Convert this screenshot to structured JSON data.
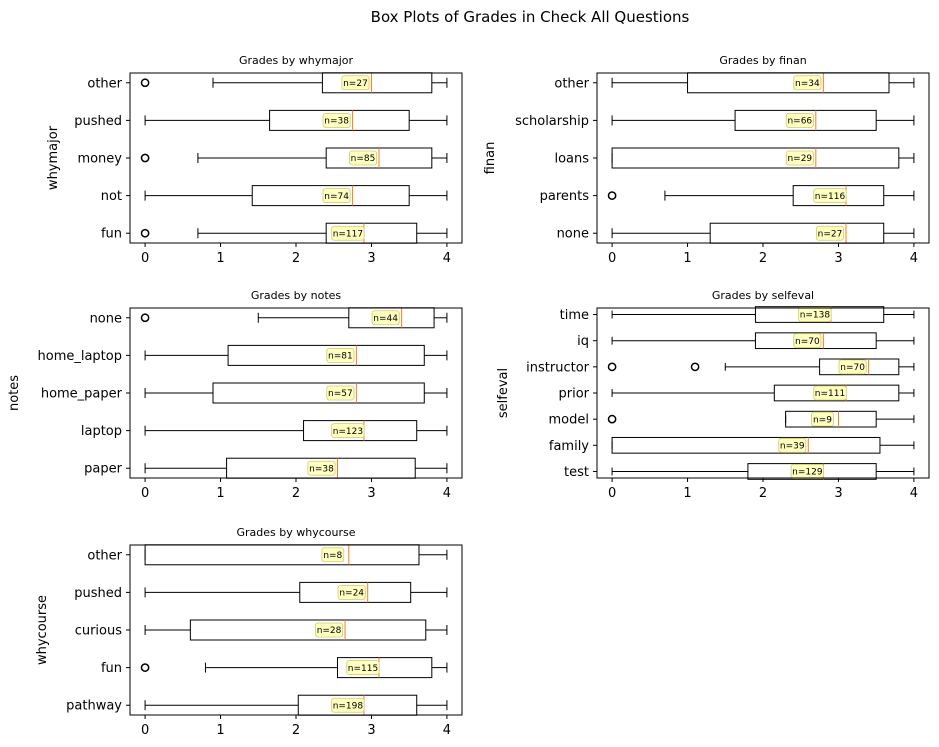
{
  "figure": {
    "suptitle": "Box Plots of Grades in Check All Questions"
  },
  "chart_data": [
    {
      "type": "boxplot",
      "orientation": "horizontal",
      "title": "Grades by whymajor",
      "xlabel": "",
      "ylabel": "whymajor",
      "xlim": [
        -0.2,
        4.2
      ],
      "xticks": [
        "0",
        "1",
        "2",
        "3",
        "4"
      ],
      "categories": [
        "other",
        "pushed",
        "money",
        "not",
        "fun"
      ],
      "boxes": [
        {
          "whislo": 0.9,
          "q1": 2.35,
          "med": 3.0,
          "q3": 3.8,
          "whishi": 4.0,
          "n": "n=27",
          "fliers": [
            0
          ]
        },
        {
          "whislo": 0.0,
          "q1": 1.65,
          "med": 2.75,
          "q3": 3.5,
          "whishi": 4.0,
          "n": "n=38",
          "fliers": []
        },
        {
          "whislo": 0.7,
          "q1": 2.4,
          "med": 3.1,
          "q3": 3.8,
          "whishi": 4.0,
          "n": "n=85",
          "fliers": [
            0
          ]
        },
        {
          "whislo": 0.0,
          "q1": 1.42,
          "med": 2.75,
          "q3": 3.5,
          "whishi": 4.0,
          "n": "n=74",
          "fliers": []
        },
        {
          "whislo": 0.7,
          "q1": 2.4,
          "med": 2.9,
          "q3": 3.6,
          "whishi": 4.0,
          "n": "n=117",
          "fliers": [
            0
          ]
        }
      ]
    },
    {
      "type": "boxplot",
      "orientation": "horizontal",
      "title": "Grades by finan",
      "xlabel": "",
      "ylabel": "finan",
      "xlim": [
        -0.2,
        4.2
      ],
      "xticks": [
        "0",
        "1",
        "2",
        "3",
        "4"
      ],
      "categories": [
        "other",
        "scholarship",
        "loans",
        "parents",
        "none"
      ],
      "boxes": [
        {
          "whislo": 0.0,
          "q1": 1.0,
          "med": 2.8,
          "q3": 3.67,
          "whishi": 4.0,
          "n": "n=34",
          "fliers": []
        },
        {
          "whislo": 0.0,
          "q1": 1.63,
          "med": 2.7,
          "q3": 3.5,
          "whishi": 4.0,
          "n": "n=66",
          "fliers": []
        },
        {
          "whislo": 0.0,
          "q1": 0.0,
          "med": 2.7,
          "q3": 3.8,
          "whishi": 4.0,
          "n": "n=29",
          "fliers": []
        },
        {
          "whislo": 0.7,
          "q1": 2.4,
          "med": 3.1,
          "q3": 3.6,
          "whishi": 4.0,
          "n": "n=116",
          "fliers": [
            0
          ]
        },
        {
          "whislo": 0.0,
          "q1": 1.3,
          "med": 3.1,
          "q3": 3.6,
          "whishi": 4.0,
          "n": "n=27",
          "fliers": []
        }
      ]
    },
    {
      "type": "boxplot",
      "orientation": "horizontal",
      "title": "Grades by notes",
      "xlabel": "",
      "ylabel": "notes",
      "xlim": [
        -0.2,
        4.2
      ],
      "xticks": [
        "0",
        "1",
        "2",
        "3",
        "4"
      ],
      "categories": [
        "none",
        "home_laptop",
        "home_paper",
        "laptop",
        "paper"
      ],
      "boxes": [
        {
          "whislo": 1.5,
          "q1": 2.7,
          "med": 3.4,
          "q3": 3.83,
          "whishi": 4.0,
          "n": "n=44",
          "fliers": [
            0
          ]
        },
        {
          "whislo": 0.0,
          "q1": 1.1,
          "med": 2.8,
          "q3": 3.7,
          "whishi": 4.0,
          "n": "n=81",
          "fliers": []
        },
        {
          "whislo": 0.0,
          "q1": 0.9,
          "med": 2.8,
          "q3": 3.7,
          "whishi": 4.0,
          "n": "n=57",
          "fliers": []
        },
        {
          "whislo": 0.0,
          "q1": 2.1,
          "med": 2.9,
          "q3": 3.6,
          "whishi": 4.0,
          "n": "n=123",
          "fliers": []
        },
        {
          "whislo": 0.0,
          "q1": 1.08,
          "med": 2.55,
          "q3": 3.58,
          "whishi": 4.0,
          "n": "n=38",
          "fliers": []
        }
      ]
    },
    {
      "type": "boxplot",
      "orientation": "horizontal",
      "title": "Grades by selfeval",
      "xlabel": "",
      "ylabel": "selfeval",
      "xlim": [
        -0.2,
        4.2
      ],
      "xticks": [
        "0",
        "1",
        "2",
        "3",
        "4"
      ],
      "categories": [
        "time",
        "iq",
        "instructor",
        "prior",
        "model",
        "family",
        "test"
      ],
      "boxes": [
        {
          "whislo": 0.0,
          "q1": 1.9,
          "med": 2.9,
          "q3": 3.6,
          "whishi": 4.0,
          "n": "n=138",
          "fliers": []
        },
        {
          "whislo": 0.0,
          "q1": 1.9,
          "med": 2.8,
          "q3": 3.5,
          "whishi": 4.0,
          "n": "n=70",
          "fliers": []
        },
        {
          "whislo": 1.5,
          "q1": 2.75,
          "med": 3.4,
          "q3": 3.8,
          "whishi": 4.0,
          "n": "n=70",
          "fliers": [
            0,
            1.1
          ]
        },
        {
          "whislo": 0.0,
          "q1": 2.15,
          "med": 3.1,
          "q3": 3.8,
          "whishi": 4.0,
          "n": "n=111",
          "fliers": []
        },
        {
          "whislo": 2.3,
          "q1": 2.3,
          "med": 3.0,
          "q3": 3.5,
          "whishi": 4.0,
          "n": "n=9",
          "fliers": [
            0
          ]
        },
        {
          "whislo": 0.0,
          "q1": 0.0,
          "med": 2.6,
          "q3": 3.55,
          "whishi": 4.0,
          "n": "n=39",
          "fliers": []
        },
        {
          "whislo": 0.0,
          "q1": 1.8,
          "med": 2.8,
          "q3": 3.5,
          "whishi": 4.0,
          "n": "n=129",
          "fliers": []
        }
      ]
    },
    {
      "type": "boxplot",
      "orientation": "horizontal",
      "title": "Grades by whycourse",
      "xlabel": "",
      "ylabel": "whycourse",
      "xlim": [
        -0.2,
        4.2
      ],
      "xticks": [
        "0",
        "1",
        "2",
        "3",
        "4"
      ],
      "categories": [
        "other",
        "pushed",
        "curious",
        "fun",
        "pathway"
      ],
      "boxes": [
        {
          "whislo": 0.0,
          "q1": 0.0,
          "med": 2.7,
          "q3": 3.63,
          "whishi": 4.0,
          "n": "n=8",
          "fliers": []
        },
        {
          "whislo": 0.0,
          "q1": 2.05,
          "med": 2.95,
          "q3": 3.52,
          "whishi": 4.0,
          "n": "n=24",
          "fliers": []
        },
        {
          "whislo": 0.0,
          "q1": 0.6,
          "med": 2.65,
          "q3": 3.72,
          "whishi": 4.0,
          "n": "n=28",
          "fliers": []
        },
        {
          "whislo": 0.8,
          "q1": 2.55,
          "med": 3.1,
          "q3": 3.8,
          "whishi": 4.0,
          "n": "n=115",
          "fliers": [
            0
          ]
        },
        {
          "whislo": 0.0,
          "q1": 2.03,
          "med": 2.9,
          "q3": 3.6,
          "whishi": 4.0,
          "n": "n=198",
          "fliers": []
        }
      ]
    }
  ]
}
